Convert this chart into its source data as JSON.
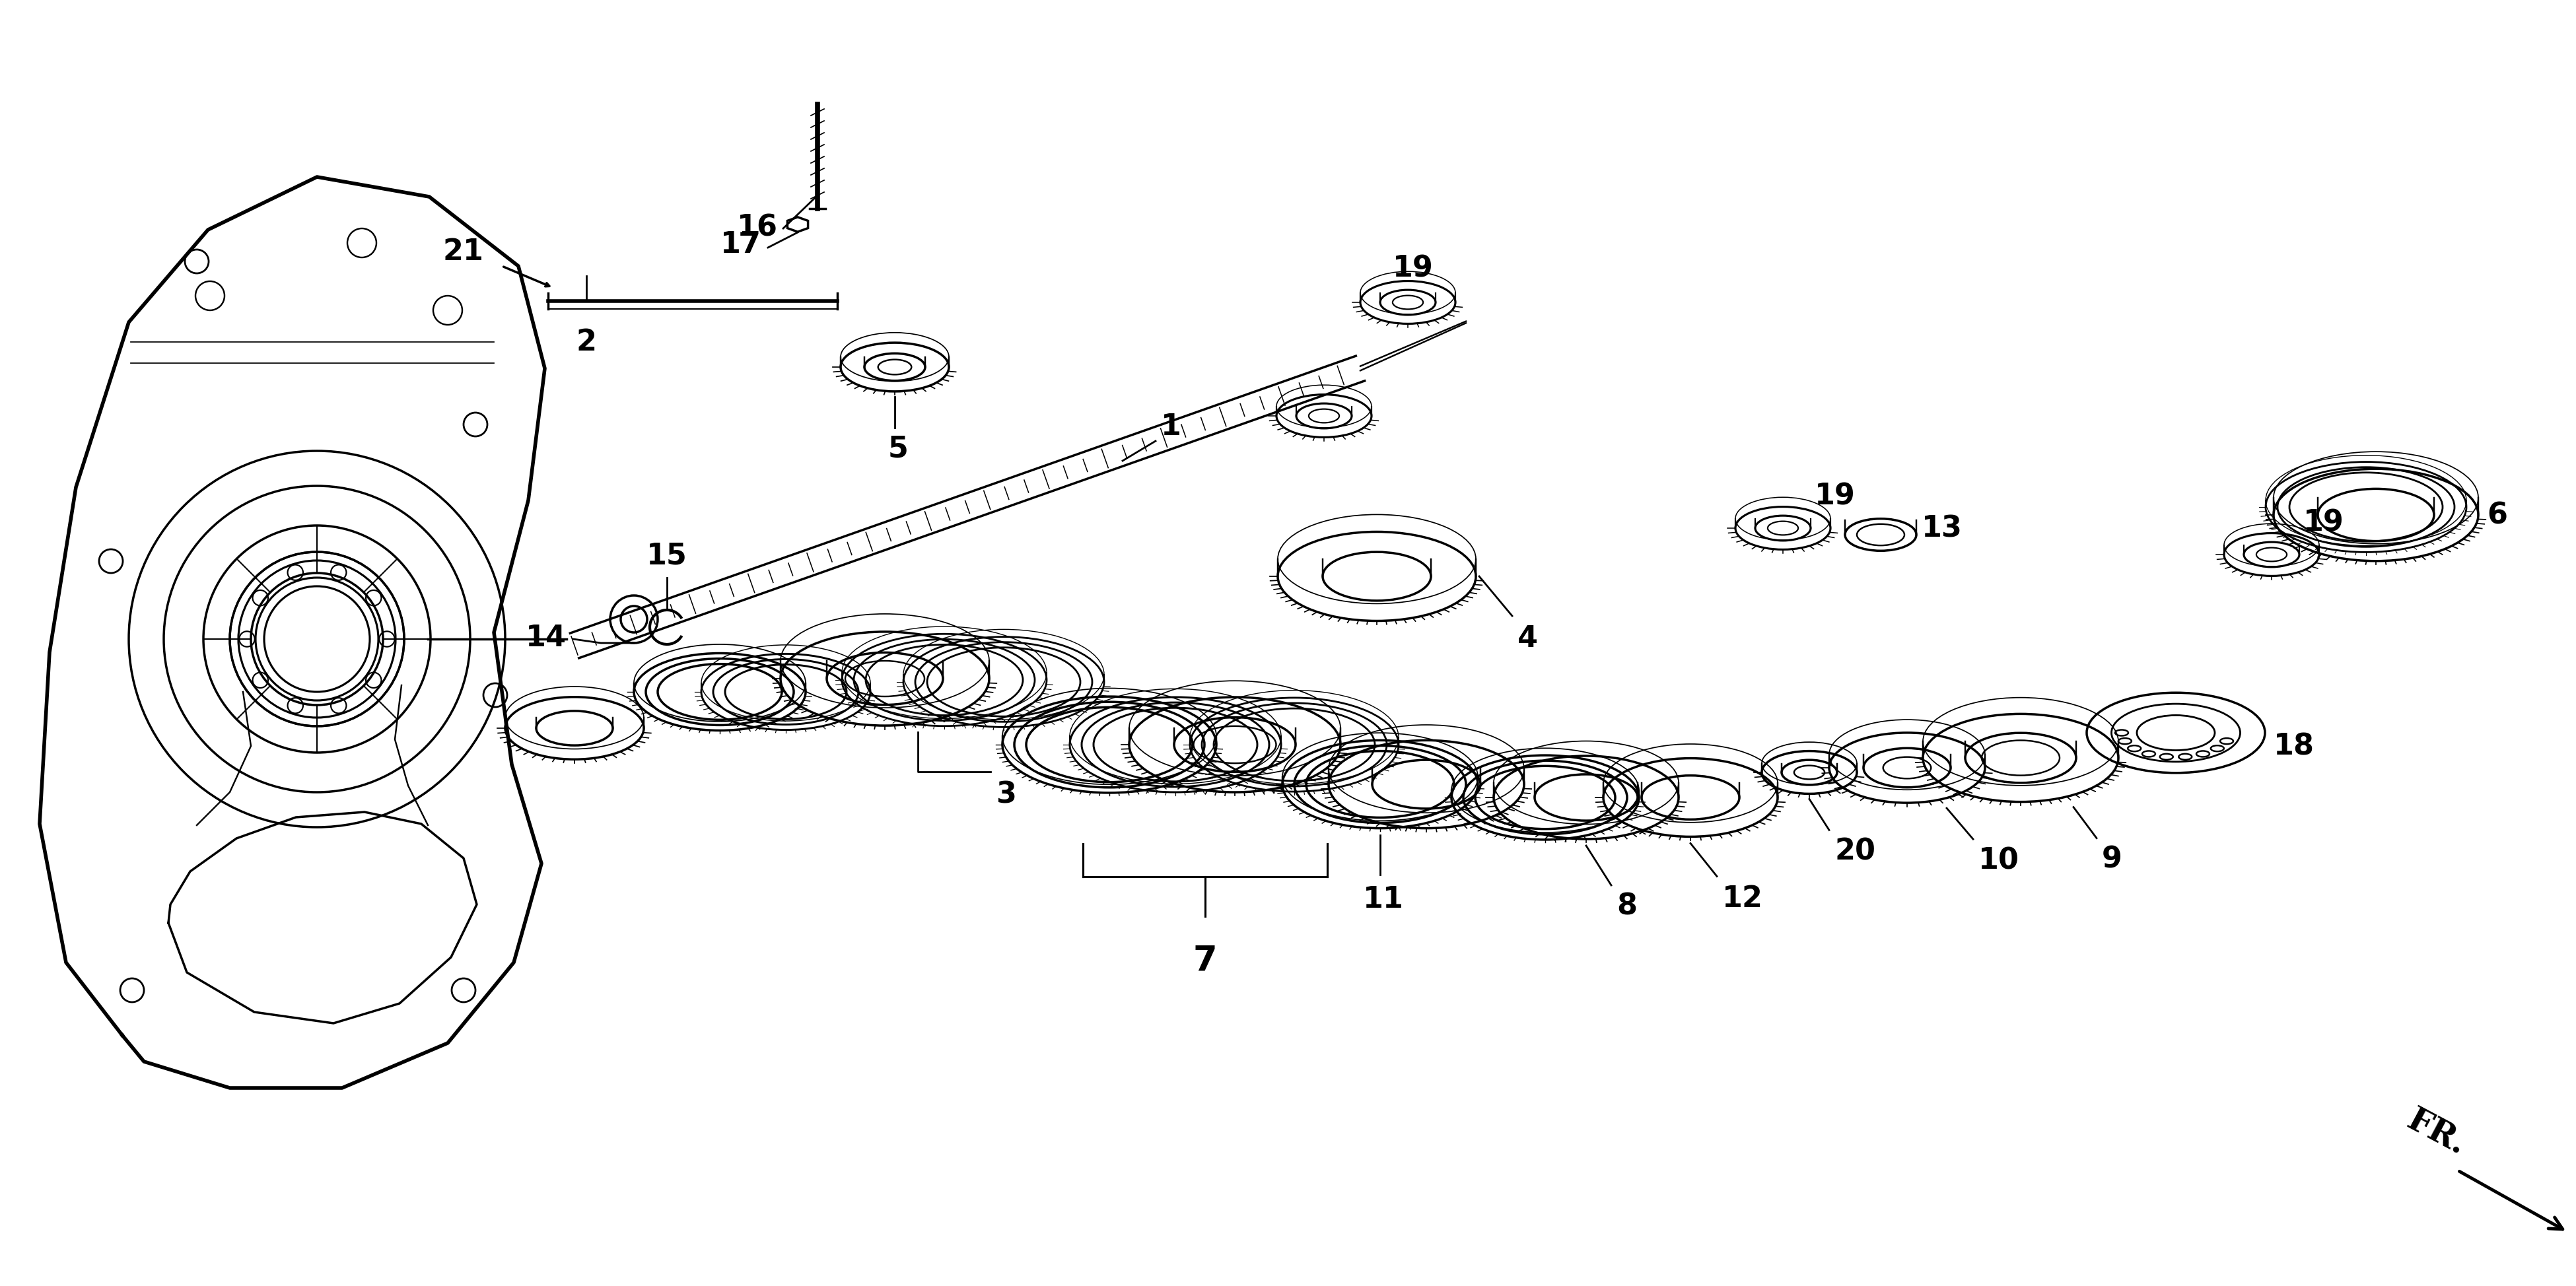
{
  "background_color": "#ffffff",
  "line_color": "#000000",
  "line_width": 2.5,
  "label_fontsize": 32,
  "squeezey": 0.45,
  "fr_text": "FR.",
  "fr_fontsize": 36
}
